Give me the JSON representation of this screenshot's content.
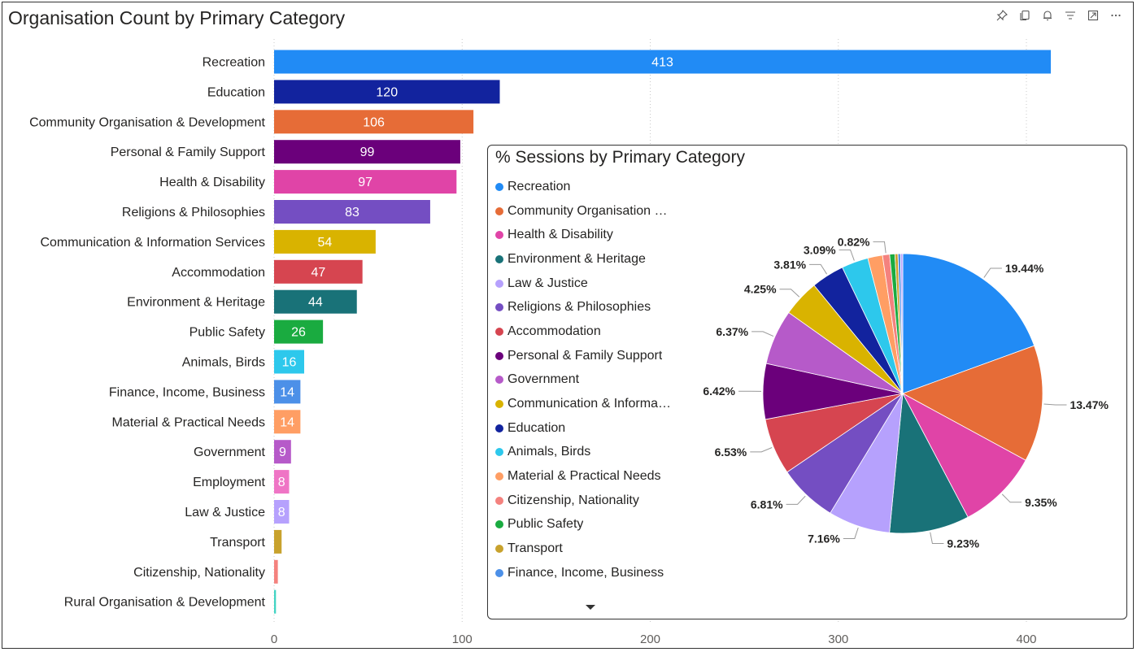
{
  "toolbar": {
    "icons": [
      "pin-icon",
      "copy-icon",
      "bell-icon",
      "filter-icon",
      "expand-icon",
      "more-icon"
    ]
  },
  "bar_chart_title": "Organisation Count by Primary Category",
  "pie_chart_title": "% Sessions by Primary Category",
  "chart_data": [
    {
      "type": "bar",
      "orientation": "horizontal",
      "title": "Organisation Count by Primary Category",
      "categories": [
        "Recreation",
        "Education",
        "Community Organisation & Development",
        "Personal & Family Support",
        "Health & Disability",
        "Religions & Philosophies",
        "Communication & Information Services",
        "Accommodation",
        "Environment & Heritage",
        "Public Safety",
        "Animals, Birds",
        "Finance, Income, Business",
        "Material & Practical Needs",
        "Government",
        "Employment",
        "Law & Justice",
        "Transport",
        "Citizenship, Nationality",
        "Rural Organisation & Development"
      ],
      "values": [
        413,
        120,
        106,
        99,
        97,
        83,
        54,
        47,
        44,
        26,
        16,
        14,
        14,
        9,
        8,
        8,
        4,
        2,
        1
      ],
      "data_labels": [
        "413",
        "120",
        "106",
        "99",
        "97",
        "83",
        "54",
        "47",
        "44",
        "26",
        "16",
        "14",
        "14",
        "9",
        "8",
        "8",
        "",
        "",
        ""
      ],
      "colors": [
        "#218BF5",
        "#12239E",
        "#E66C37",
        "#6B007B",
        "#E044A7",
        "#744EC2",
        "#D9B300",
        "#D64550",
        "#197278",
        "#1AAB40",
        "#2DC8EC",
        "#4C90E8",
        "#FF9E64",
        "#B65AC9",
        "#EF75C5",
        "#B6A1FD",
        "#C8A22D",
        "#F4827E",
        "#42D4C4"
      ],
      "x_ticks": [
        "0",
        "100",
        "200",
        "300",
        "400"
      ],
      "xlim": [
        0,
        450
      ],
      "grid": "vertical-dotted"
    },
    {
      "type": "pie",
      "title": "% Sessions by Primary Category",
      "legend": [
        "Recreation",
        "Community Organisation …",
        "Health & Disability",
        "Environment & Heritage",
        "Law & Justice",
        "Religions & Philosophies",
        "Accommodation",
        "Personal & Family Support",
        "Government",
        "Communication & Informa…",
        "Education",
        "Animals, Birds",
        "Material & Practical Needs",
        "Citizenship, Nationality",
        "Public Safety",
        "Transport",
        "Finance, Income, Business"
      ],
      "legend_colors": [
        "#218BF5",
        "#E66C37",
        "#E044A7",
        "#197278",
        "#B6A1FD",
        "#744EC2",
        "#D64550",
        "#6B007B",
        "#B65AC9",
        "#D9B300",
        "#12239E",
        "#2DC8EC",
        "#FF9E64",
        "#F4827E",
        "#1AAB40",
        "#C8A22D",
        "#4C90E8"
      ],
      "legend_placement": "left",
      "slices": [
        {
          "value": 19.44,
          "label": "19.44%",
          "color": "#218BF5"
        },
        {
          "value": 13.47,
          "label": "13.47%",
          "color": "#E66C37"
        },
        {
          "value": 9.35,
          "label": "9.35%",
          "color": "#E044A7"
        },
        {
          "value": 9.23,
          "label": "9.23%",
          "color": "#197278"
        },
        {
          "value": 7.16,
          "label": "7.16%",
          "color": "#B6A1FD"
        },
        {
          "value": 6.81,
          "label": "6.81%",
          "color": "#744EC2"
        },
        {
          "value": 6.53,
          "label": "6.53%",
          "color": "#D64550"
        },
        {
          "value": 6.42,
          "label": "6.42%",
          "color": "#6B007B"
        },
        {
          "value": 6.37,
          "label": "6.37%",
          "color": "#B65AC9"
        },
        {
          "value": 4.25,
          "label": "4.25%",
          "color": "#D9B300"
        },
        {
          "value": 3.81,
          "label": "3.81%",
          "color": "#12239E"
        },
        {
          "value": 3.09,
          "label": "3.09%",
          "color": "#2DC8EC"
        },
        {
          "value": 1.7,
          "label": "",
          "color": "#FF9E64"
        },
        {
          "value": 0.82,
          "label": "0.82%",
          "color": "#F4827E"
        },
        {
          "value": 0.6,
          "label": "",
          "color": "#1AAB40"
        },
        {
          "value": 0.35,
          "label": "",
          "color": "#C8A22D"
        },
        {
          "value": 0.3,
          "label": "",
          "color": "#4C90E8"
        },
        {
          "value": 0.25,
          "label": "",
          "color": "#B6A1FD"
        }
      ]
    }
  ]
}
